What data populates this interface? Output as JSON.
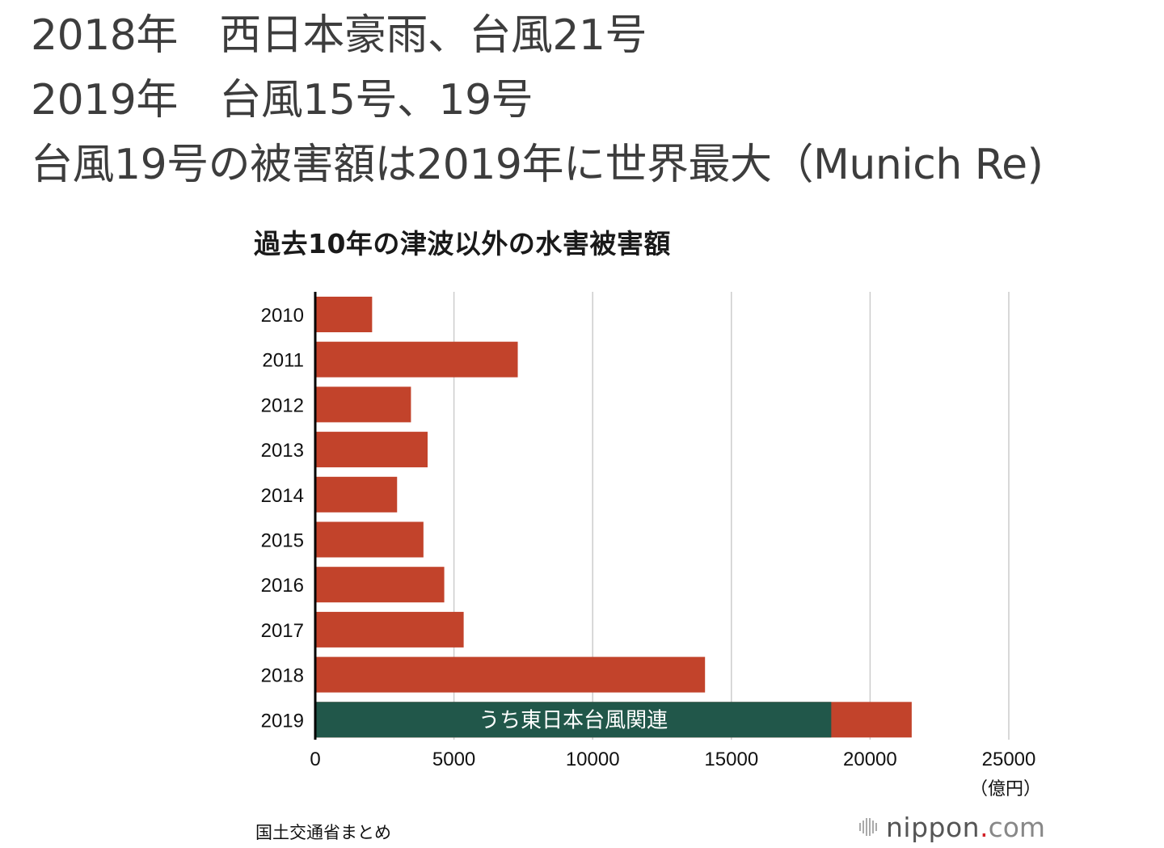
{
  "headlines": [
    "2018年　西日本豪雨、台風21号",
    "2019年　台風15号、19号",
    "台風19号の被害額は2019年に世界最大（Munich Re)"
  ],
  "source": "国土交通省まとめ",
  "brand": {
    "name": "nippon",
    "dot": ".",
    "tld": "com"
  },
  "colors": {
    "bar": "#c2432b",
    "highlight": "#21574a",
    "grid": "#cccccc",
    "axis": "#000000"
  },
  "chart_data": {
    "type": "bar",
    "orientation": "horizontal",
    "title": "過去10年の津波以外の水害被害額",
    "unit_label": "（億円）",
    "categories": [
      "2010",
      "2011",
      "2012",
      "2013",
      "2014",
      "2015",
      "2016",
      "2017",
      "2018",
      "2019"
    ],
    "values": [
      2050,
      7300,
      3450,
      4050,
      2950,
      3900,
      4650,
      5350,
      14050,
      21500
    ],
    "xlim": [
      0,
      25000
    ],
    "xticks": [
      0,
      5000,
      10000,
      15000,
      20000,
      25000
    ],
    "grid": true,
    "highlight": {
      "category": "2019",
      "value": 18600,
      "label": "うち東日本台風関連"
    }
  }
}
